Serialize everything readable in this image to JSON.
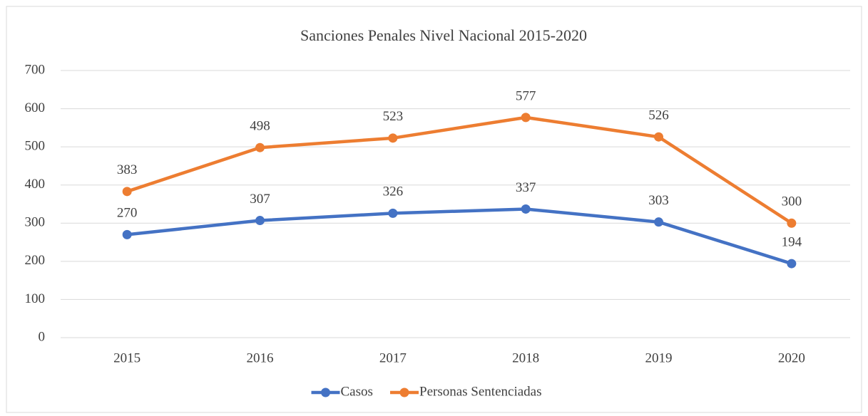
{
  "chart_data": {
    "type": "line",
    "title": "Sanciones Penales Nivel Nacional 2015-2020",
    "categories": [
      "2015",
      "2016",
      "2017",
      "2018",
      "2019",
      "2020"
    ],
    "series": [
      {
        "name": "Casos",
        "color": "#4472c4",
        "values": [
          270,
          307,
          326,
          337,
          303,
          194
        ]
      },
      {
        "name": "Personas Sentenciadas",
        "color": "#ed7d31",
        "values": [
          383,
          498,
          523,
          577,
          526,
          300
        ]
      }
    ],
    "ylim": [
      0,
      700
    ],
    "yticks": [
      0,
      100,
      200,
      300,
      400,
      500,
      600,
      700
    ],
    "grid": true,
    "legend": "bottom"
  }
}
